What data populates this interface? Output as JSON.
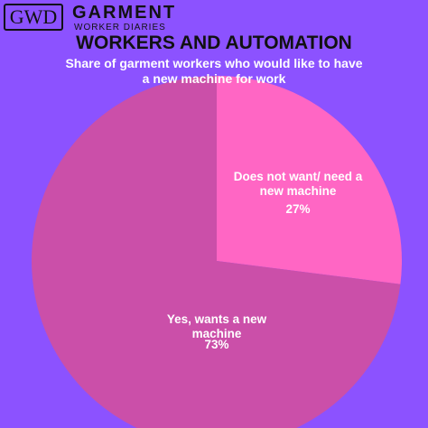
{
  "logo": {
    "mark": "GWD",
    "name": "GARMENT",
    "tagline": "WORKER DIARIES"
  },
  "chart_data": {
    "type": "pie",
    "title": "WORKERS AND AUTOMATION",
    "subtitle": "Share of garment workers who would like to have a new machine for work",
    "categories": [
      "Does not want/ need a new machine",
      "Yes, wants a new machine"
    ],
    "values": [
      27,
      73
    ],
    "value_labels": [
      "27%",
      "73%"
    ],
    "colors": [
      "#ff66c4",
      "#cb4fa9"
    ],
    "background": "#8c52ff"
  }
}
